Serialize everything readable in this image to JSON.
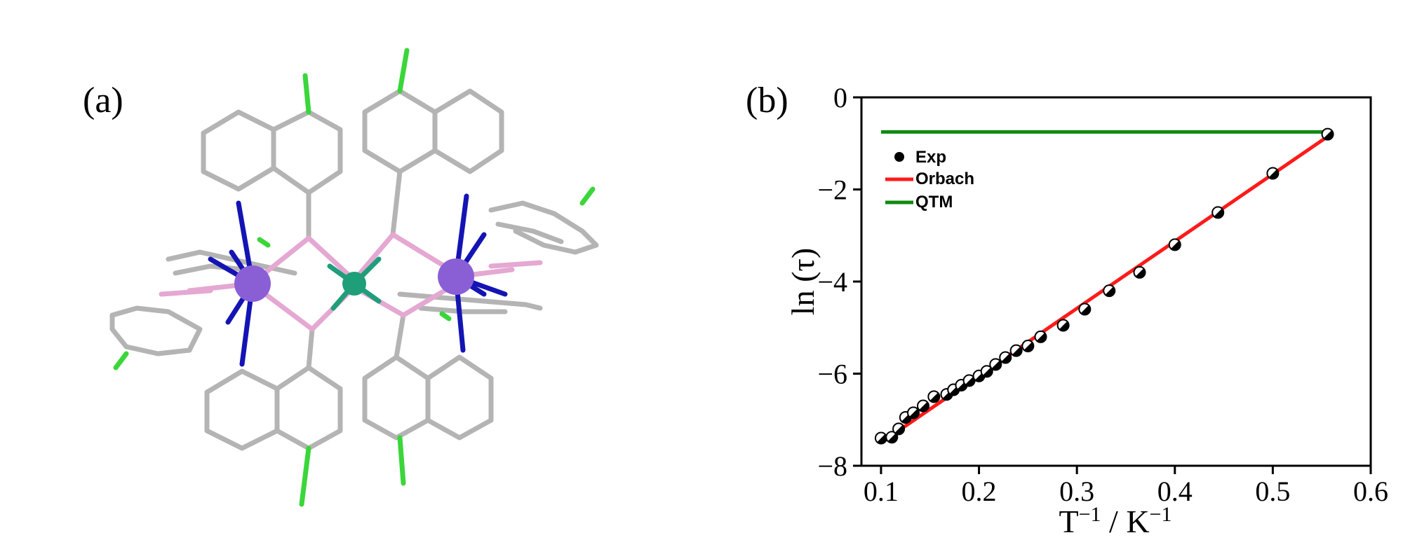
{
  "panel_a": {
    "label": "(a)",
    "colors": {
      "metal_purple": "#8a5fd6",
      "metal_green": "#1f9e7a",
      "nitrogen": "#1414b4",
      "boron": "#e4a8d2",
      "carbon": "#b4b4b4",
      "fluorine": "#3ad63a"
    }
  },
  "panel_b": {
    "label": "(b)"
  },
  "chart_data": {
    "type": "scatter",
    "xlabel": "T",
    "xlabel_sup1": "−1",
    "xlabel_mid": " / K",
    "xlabel_sup2": "−1",
    "ylabel": "ln (τ)",
    "xlim": [
      0.08,
      0.6
    ],
    "ylim": [
      -8,
      0
    ],
    "xticks": [
      0.1,
      0.2,
      0.3,
      0.4,
      0.5,
      0.6
    ],
    "xtick_labels": [
      "0.1",
      "0.2",
      "0.3",
      "0.4",
      "0.5",
      "0.6"
    ],
    "yticks": [
      0,
      -2,
      -4,
      -6,
      -8
    ],
    "ytick_labels": [
      "0",
      "−2",
      "−4",
      "−6",
      "−8"
    ],
    "grid": false,
    "legend_position": "top-left",
    "series": [
      {
        "name": "Exp",
        "kind": "points",
        "color": "#000000",
        "x": [
          0.1,
          0.111,
          0.118,
          0.125,
          0.133,
          0.143,
          0.154,
          0.167,
          0.174,
          0.182,
          0.19,
          0.2,
          0.208,
          0.217,
          0.227,
          0.238,
          0.25,
          0.263,
          0.286,
          0.308,
          0.333,
          0.364,
          0.4,
          0.444,
          0.5,
          0.556
        ],
        "y": [
          -7.4,
          -7.38,
          -7.2,
          -6.95,
          -6.85,
          -6.7,
          -6.5,
          -6.45,
          -6.35,
          -6.25,
          -6.15,
          -6.05,
          -5.95,
          -5.8,
          -5.65,
          -5.5,
          -5.4,
          -5.2,
          -4.95,
          -4.6,
          -4.2,
          -3.8,
          -3.2,
          -2.5,
          -1.65,
          -0.8
        ]
      },
      {
        "name": "Orbach",
        "kind": "line",
        "color": "#ff1a1a",
        "x": [
          0.1,
          0.556
        ],
        "y": [
          -7.5,
          -0.85
        ]
      },
      {
        "name": "QTM",
        "kind": "line",
        "color": "#0f8a0f",
        "x": [
          0.1,
          0.556
        ],
        "y": [
          -0.75,
          -0.75
        ]
      }
    ]
  }
}
